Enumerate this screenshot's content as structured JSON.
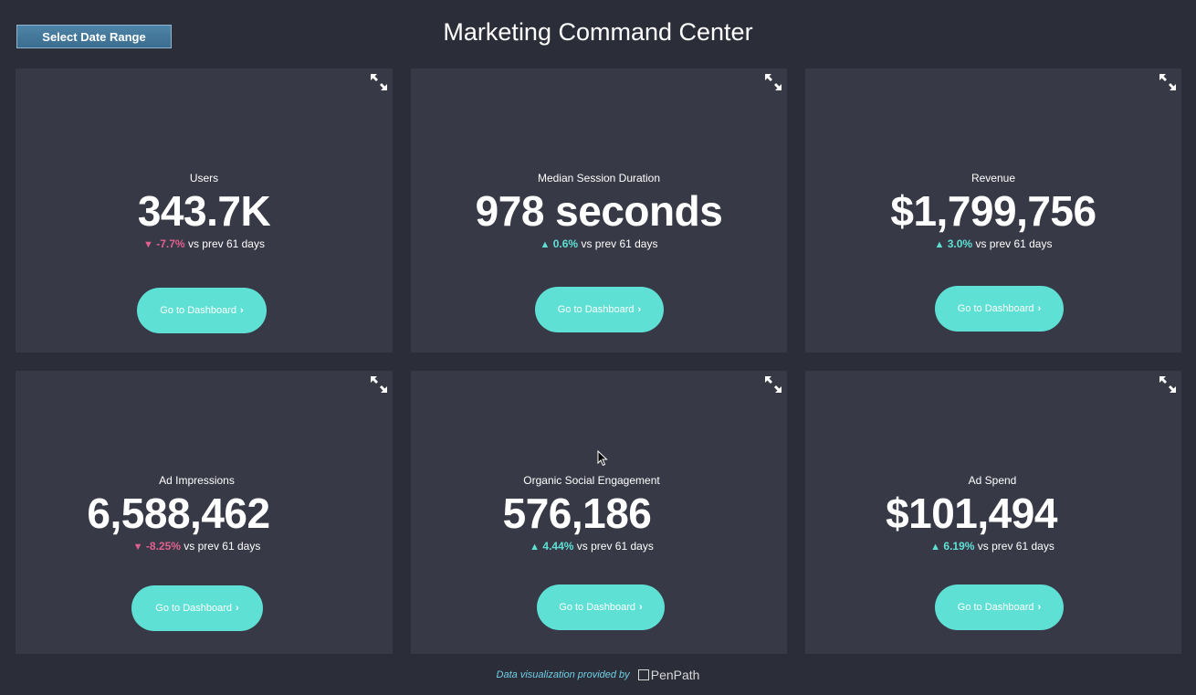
{
  "header": {
    "title": "Marketing Command Center",
    "date_range_label": "Select Date Range"
  },
  "colors": {
    "background": "#2b2d38",
    "card": "#383946",
    "accent": "#5ee0d4",
    "positive": "#5ee0d4",
    "negative": "#e0608e"
  },
  "cards": [
    {
      "label": "Users",
      "value": "343.7K",
      "direction": "down",
      "change": "-7.7%",
      "comparison": "vs prev 61 days",
      "button": "Go to Dashboard",
      "expand_icon": "expand-icon"
    },
    {
      "label": "Median Session Duration",
      "value": "978 seconds",
      "direction": "up",
      "change": "0.6%",
      "comparison": "vs prev 61 days",
      "button": "Go to Dashboard",
      "expand_icon": "expand-icon"
    },
    {
      "label": "Revenue",
      "value": "$1,799,756",
      "direction": "up",
      "change": "3.0%",
      "comparison": "vs prev 61 days",
      "button": "Go to Dashboard",
      "expand_icon": "expand-icon"
    },
    {
      "label": "Ad Impressions",
      "value": "6,588,462",
      "direction": "down",
      "change": "-8.25%",
      "comparison": "vs prev 61 days",
      "button": "Go to Dashboard",
      "expand_icon": "expand-icon"
    },
    {
      "label": "Organic Social Engagement",
      "value": "576,186",
      "direction": "up",
      "change": "4.44%",
      "comparison": "vs prev 61 days",
      "button": "Go to Dashboard",
      "expand_icon": "expand-icon"
    },
    {
      "label": "Ad Spend",
      "value": "$101,494",
      "direction": "up",
      "change": "6.19%",
      "comparison": "vs prev 61 days",
      "button": "Go to Dashboard",
      "expand_icon": "expand-icon"
    }
  ],
  "footer": {
    "text": "Data visualization provided by",
    "logo": "PenPath"
  }
}
